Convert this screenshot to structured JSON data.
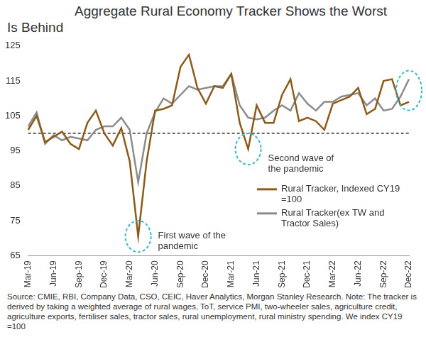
{
  "chart_data": {
    "type": "line",
    "title": [
      "Aggregate Rural Economy Tracker Shows the Worst",
      "Is Behind"
    ],
    "note": "Source: CMIE, RBI, Company Data, CSO, CEIC, Haver Analytics, Morgan Stanley Research. Note: The tracker is derived by taking a weighted average of rural wages, ToT, service PMI, two-wheeler sales, agriculture credit, agriculture exports, fertiliser sales, tractor sales, rural unemployment, rural ministry spending. We index CY19 =100",
    "categories": [
      "Mar-19",
      null,
      null,
      "Jun-19",
      null,
      null,
      "Sep-19",
      null,
      null,
      "Dec-19",
      null,
      null,
      "Mar-20",
      null,
      null,
      "Jun-20",
      null,
      null,
      "Sep-20",
      null,
      null,
      "Dec-20",
      null,
      null,
      "Mar-21",
      null,
      null,
      "Jun-21",
      null,
      null,
      "Sep-21",
      null,
      null,
      "Dec-21",
      null,
      null,
      "Mar-22",
      null,
      null,
      "Jun-22",
      null,
      null,
      "Sep-22",
      null,
      null,
      "Dec-22"
    ],
    "series": [
      {
        "name": "Rural Tracker, Indexed CY19 =100",
        "color": "#8c5b19",
        "values": [
          101,
          105,
          97.5,
          99,
          100.5,
          97,
          95.5,
          103,
          106.5,
          100,
          96.5,
          101.5,
          92,
          70.5,
          92,
          106.5,
          107,
          108,
          119,
          122.5,
          113,
          108.5,
          113.5,
          113,
          117,
          103,
          95.5,
          108,
          103,
          103,
          111,
          115.5,
          103.5,
          104.5,
          103.5,
          101,
          108.5,
          109.5,
          110.5,
          113,
          105.5,
          107,
          115,
          115.5,
          108,
          109
        ]
      },
      {
        "name": "Rural Tracker(ex TW and Tractor Sales)",
        "color": "#8c8c8c",
        "values": [
          102,
          106,
          97,
          99.5,
          98,
          99,
          98.5,
          98,
          101,
          102,
          102,
          104.5,
          101,
          86,
          100,
          106,
          110,
          108.5,
          111,
          113.5,
          112.5,
          113,
          113.5,
          113.5,
          117,
          108,
          104.5,
          104,
          104.5,
          106.5,
          108,
          106.5,
          111.5,
          108.5,
          106.5,
          109,
          109,
          110.5,
          111,
          111.5,
          108,
          110,
          106.5,
          107,
          110.5,
          115.5
        ]
      }
    ],
    "ylim": [
      65,
      125
    ],
    "yticks": [
      65,
      75,
      85,
      95,
      105,
      115,
      125
    ],
    "grid": false,
    "legend": "lower right",
    "reference_lines": [
      {
        "value": 100,
        "line_style": "dashed",
        "color": "#000000"
      }
    ],
    "annotations": [
      {
        "text": "First wave of the pandemic",
        "series": 0,
        "index": 13
      },
      {
        "text": "Second wave of the pandemic",
        "series": 0,
        "index": 26
      },
      {
        "index": 45
      }
    ]
  }
}
